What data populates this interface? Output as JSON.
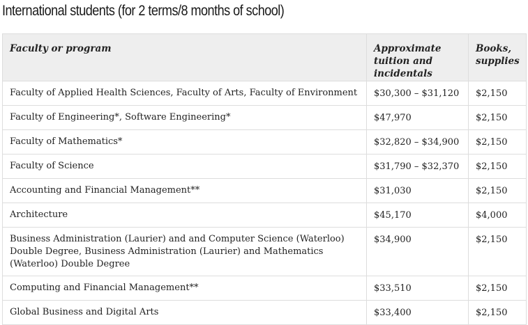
{
  "heading": "International students (for 2 terms/8 months of school)",
  "table": {
    "headers": [
      "Faculty or program",
      "Approximate tuition and incidentals",
      "Books, supplies"
    ],
    "rows": [
      {
        "program": "Faculty of Applied Health Sciences, Faculty of Arts, Faculty of Environment",
        "tuition": "$30,300 – $31,120",
        "books": "$2,150"
      },
      {
        "program": "Faculty of Engineering*, Software Engineering*",
        "tuition": "$47,970",
        "books": "$2,150"
      },
      {
        "program": "Faculty of Mathematics*",
        "tuition": "$32,820 – $34,900",
        "books": "$2,150"
      },
      {
        "program": "Faculty of Science",
        "tuition": "$31,790 – $32,370",
        "books": "$2,150"
      },
      {
        "program": "Accounting and Financial Management**",
        "tuition": "$31,030",
        "books": "$2,150"
      },
      {
        "program": "Architecture",
        "tuition": "$45,170",
        "books": "$4,000"
      },
      {
        "program": "Business Administration (Laurier) and and Computer Science (Waterloo) Double Degree, Business Administration (Laurier) and Mathematics (Waterloo) Double Degree",
        "tuition": "$34,900",
        "books": "$2,150"
      },
      {
        "program": "Computing and Financial Management**",
        "tuition": "$33,510",
        "books": "$2,150"
      },
      {
        "program": "Global Business and Digital Arts",
        "tuition": "$33,400",
        "books": "$2,150"
      }
    ]
  }
}
